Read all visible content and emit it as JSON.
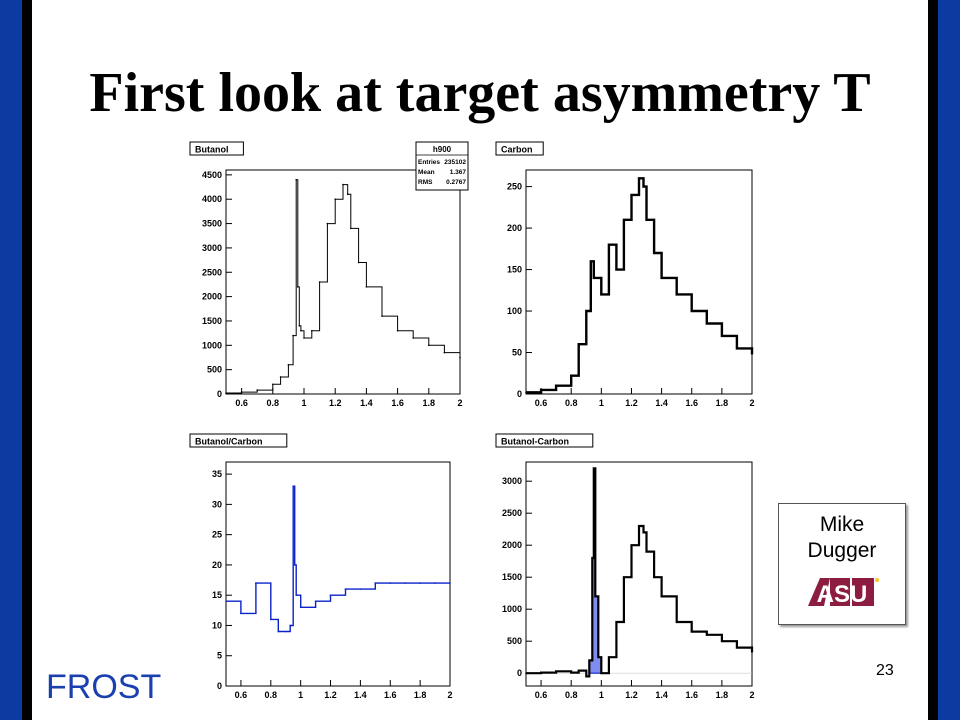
{
  "slide": {
    "title": "First look at target asymmetry T",
    "footer_label": "FROST",
    "page_number": "23",
    "credit_name_line1": "Mike",
    "credit_name_line2": "Dugger",
    "logo_text": "ASU",
    "colors": {
      "frame": "#0b3aa0",
      "frost_text": "#1a3fae",
      "logo": "#8c1d40",
      "logo_gold": "#ffc627",
      "hist_blue": "#0a22c8",
      "fill_blue": "#7f8cf0"
    }
  },
  "chart_data": [
    {
      "type": "line",
      "panel_label": "Butanol",
      "x": [
        0.5,
        0.6,
        0.7,
        0.8,
        0.85,
        0.9,
        0.93,
        0.95,
        0.96,
        0.97,
        0.98,
        1.0,
        1.05,
        1.1,
        1.15,
        1.2,
        1.25,
        1.28,
        1.3,
        1.35,
        1.4,
        1.5,
        1.6,
        1.7,
        1.8,
        1.9,
        2.0
      ],
      "y": [
        20,
        40,
        80,
        200,
        350,
        600,
        1200,
        4400,
        2200,
        1400,
        1300,
        1150,
        1300,
        2300,
        3500,
        4000,
        4300,
        4100,
        3400,
        2700,
        2200,
        1600,
        1300,
        1150,
        1000,
        850,
        750
      ],
      "xlim": [
        0.5,
        2.0
      ],
      "ylim": [
        0,
        4600
      ],
      "x_ticks": [
        "0.6",
        "0.8",
        "1",
        "1.2",
        "1.4",
        "1.6",
        "1.8",
        "2"
      ],
      "y_ticks": [
        "0",
        "500",
        "1000",
        "1500",
        "2000",
        "2500",
        "3000",
        "3500",
        "4000",
        "4500"
      ],
      "stats_box": {
        "name": "h900",
        "rows": [
          [
            "Entries",
            "235102"
          ],
          [
            "Mean",
            "1.367"
          ],
          [
            "RMS",
            "0.2767"
          ]
        ]
      }
    },
    {
      "type": "line",
      "panel_label": "Carbon",
      "x": [
        0.5,
        0.6,
        0.7,
        0.8,
        0.85,
        0.9,
        0.93,
        0.95,
        1.0,
        1.05,
        1.1,
        1.15,
        1.2,
        1.25,
        1.28,
        1.3,
        1.35,
        1.4,
        1.5,
        1.6,
        1.7,
        1.8,
        1.9,
        2.0
      ],
      "y": [
        2,
        5,
        10,
        22,
        60,
        100,
        160,
        140,
        120,
        180,
        150,
        210,
        240,
        260,
        250,
        210,
        170,
        140,
        120,
        100,
        85,
        70,
        55,
        48
      ],
      "xlim": [
        0.5,
        2.0
      ],
      "ylim": [
        0,
        270
      ],
      "x_ticks": [
        "0.6",
        "0.8",
        "1",
        "1.2",
        "1.4",
        "1.6",
        "1.8",
        "2"
      ],
      "y_ticks": [
        "0",
        "50",
        "100",
        "150",
        "200",
        "250"
      ]
    },
    {
      "type": "line",
      "panel_label": "Butanol/Carbon",
      "x": [
        0.5,
        0.6,
        0.7,
        0.8,
        0.85,
        0.9,
        0.93,
        0.95,
        0.96,
        0.97,
        1.0,
        1.1,
        1.2,
        1.3,
        1.4,
        1.5,
        1.6,
        1.7,
        1.8,
        1.9,
        2.0
      ],
      "y": [
        14,
        12,
        17,
        11,
        9,
        9,
        10,
        33,
        20,
        15,
        13,
        14,
        15,
        16,
        16,
        17,
        17,
        17,
        17,
        17,
        17
      ],
      "xlim": [
        0.5,
        2.0
      ],
      "ylim": [
        0,
        37
      ],
      "x_ticks": [
        "0.6",
        "0.8",
        "1",
        "1.2",
        "1.4",
        "1.6",
        "1.8",
        "2"
      ],
      "y_ticks": [
        "0",
        "5",
        "10",
        "15",
        "20",
        "25",
        "30",
        "35"
      ]
    },
    {
      "type": "line",
      "panel_label": "Butanol-Carbon",
      "x": [
        0.5,
        0.6,
        0.7,
        0.8,
        0.85,
        0.9,
        0.92,
        0.94,
        0.95,
        0.96,
        0.98,
        1.0,
        1.05,
        1.1,
        1.15,
        1.2,
        1.25,
        1.28,
        1.3,
        1.35,
        1.4,
        1.5,
        1.6,
        1.7,
        1.8,
        1.9,
        2.0
      ],
      "y": [
        0,
        10,
        30,
        10,
        40,
        -50,
        200,
        1800,
        3200,
        1200,
        250,
        0,
        250,
        800,
        1500,
        2000,
        2300,
        2200,
        1900,
        1500,
        1200,
        800,
        650,
        600,
        500,
        400,
        330
      ],
      "xlim": [
        0.5,
        2.0
      ],
      "ylim": [
        -200,
        3300
      ],
      "x_ticks": [
        "0.6",
        "0.8",
        "1",
        "1.2",
        "1.4",
        "1.6",
        "1.8",
        "2"
      ],
      "y_ticks": [
        "0",
        "500",
        "1000",
        "1500",
        "2000",
        "2500",
        "3000"
      ]
    }
  ]
}
